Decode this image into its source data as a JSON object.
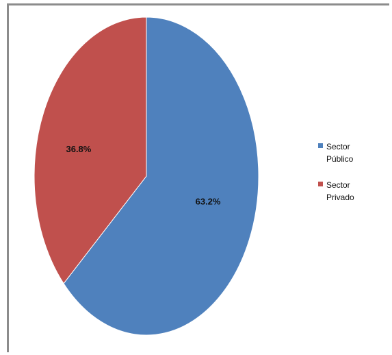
{
  "chart_data": {
    "type": "pie",
    "slices": [
      {
        "name": "Sector Público",
        "value": 63.2,
        "label": "63.2%",
        "color": "#4f81bd"
      },
      {
        "name": "Sector Privado",
        "value": 36.8,
        "label": "36.8%",
        "color": "#c0504d"
      }
    ],
    "start_angle_deg": 0,
    "direction": "clockwise",
    "legend_position": "right"
  },
  "legend": {
    "items": [
      {
        "label": "Sector Público",
        "color": "#4f81bd"
      },
      {
        "label": "Sector Privado",
        "color": "#c0504d"
      }
    ]
  }
}
